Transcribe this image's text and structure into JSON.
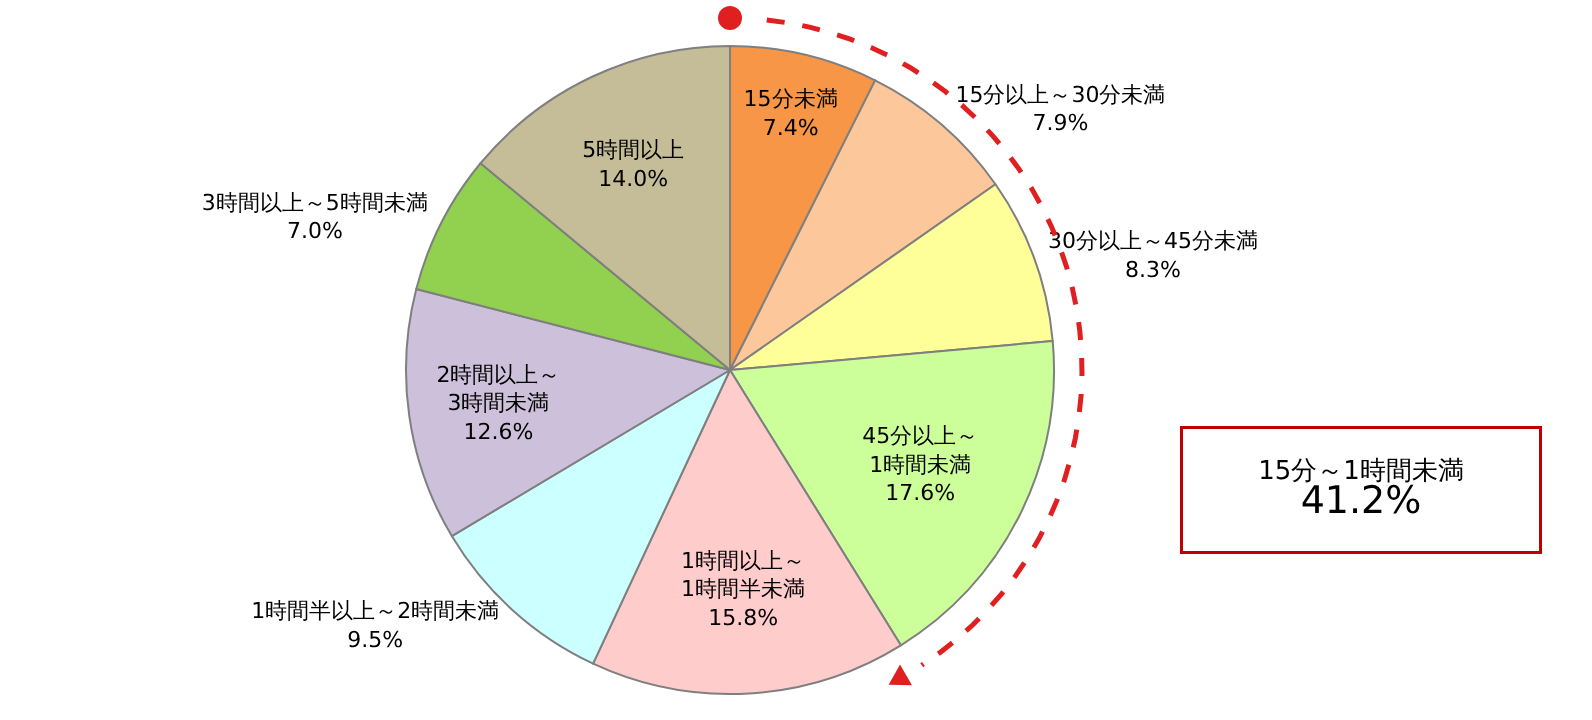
{
  "chart_data": {
    "type": "pie",
    "categories": [
      "15分未満",
      "15分以上～30分未満",
      "30分以上～45分未満",
      "45分以上～1時間未満",
      "1時間以上～1時間半未満",
      "1時間半以上～2時間未満",
      "2時間以上～3時間未満",
      "3時間以上～5時間未満",
      "5時間以上"
    ],
    "values": [
      7.4,
      7.9,
      8.3,
      17.6,
      15.8,
      9.5,
      12.6,
      7.0,
      14.0
    ],
    "value_labels": [
      "7.4%",
      "7.9%",
      "8.3%",
      "17.6%",
      "15.8%",
      "9.5%",
      "12.6%",
      "7.0%",
      "14.0%"
    ],
    "colors": [
      "#f79646",
      "#fcc89b",
      "#ffff99",
      "#ccff99",
      "#ffcccc",
      "#ccffff",
      "#ccc0da",
      "#92d050",
      "#c4bd97"
    ],
    "annotations": [
      "15分～1時間未満\n41.2%"
    ],
    "legend": false
  }
}
